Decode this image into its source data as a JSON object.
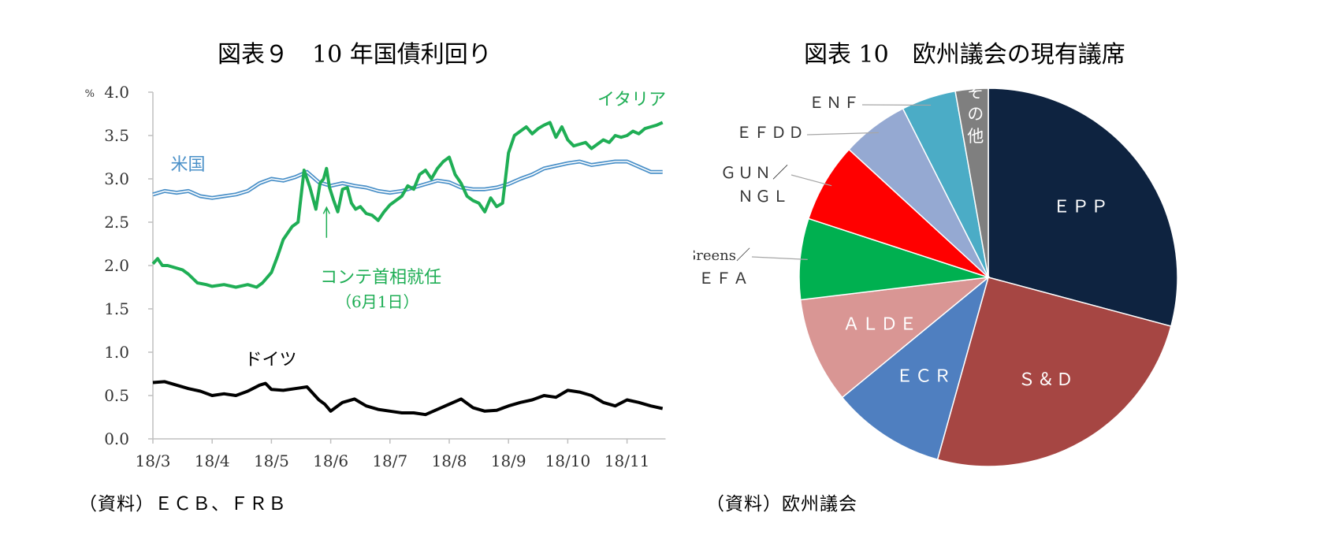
{
  "charts": [
    {
      "title": "図表９　10 年国債利回り",
      "source": "（資料）ＥＣＢ、ＦＲＢ"
    },
    {
      "title": "図表 10　欧州議会の現有議席",
      "source": "（資料）欧州議会"
    }
  ],
  "colors": {
    "italy": "#1fae55",
    "us": "#4a90c8",
    "germany": "#000000",
    "axis": "#bfbfbf"
  },
  "chart_data": [
    {
      "type": "line",
      "title": "図表９　10 年国債利回り",
      "yunit": "%",
      "ylim": [
        0.0,
        4.0
      ],
      "yticks": [
        "0.0",
        "0.5",
        "1.0",
        "1.5",
        "2.0",
        "2.5",
        "3.0",
        "3.5",
        "4.0"
      ],
      "xticks": [
        "18/3",
        "18/4",
        "18/5",
        "18/6",
        "18/7",
        "18/8",
        "18/9",
        "18/10",
        "18/11"
      ],
      "xlim": [
        0,
        8.65
      ],
      "annotation": {
        "line1": "コンテ首相就任",
        "line2": "（6月1日）",
        "x": 2.93,
        "y": 2.67
      },
      "series": [
        {
          "name": "イタリア",
          "x": [
            0,
            0.08,
            0.16,
            0.25,
            0.35,
            0.5,
            0.6,
            0.75,
            0.9,
            1.0,
            1.2,
            1.4,
            1.6,
            1.75,
            1.85,
            2.0,
            2.1,
            2.2,
            2.35,
            2.45,
            2.55,
            2.65,
            2.75,
            2.82,
            2.88,
            2.93,
            2.98,
            3.05,
            3.12,
            3.2,
            3.28,
            3.35,
            3.42,
            3.5,
            3.6,
            3.7,
            3.8,
            3.9,
            4.0,
            4.1,
            4.2,
            4.3,
            4.4,
            4.5,
            4.6,
            4.7,
            4.8,
            4.9,
            5.0,
            5.1,
            5.2,
            5.3,
            5.4,
            5.5,
            5.6,
            5.7,
            5.8,
            5.9,
            6.0,
            6.1,
            6.2,
            6.3,
            6.4,
            6.5,
            6.6,
            6.7,
            6.8,
            6.9,
            7.0,
            7.1,
            7.2,
            7.3,
            7.4,
            7.5,
            7.6,
            7.7,
            7.8,
            7.9,
            8.0,
            8.1,
            8.2,
            8.3,
            8.4,
            8.5,
            8.6
          ],
          "values": [
            2.02,
            2.08,
            2.0,
            2.0,
            1.98,
            1.95,
            1.9,
            1.8,
            1.78,
            1.76,
            1.78,
            1.75,
            1.78,
            1.75,
            1.8,
            1.92,
            2.1,
            2.3,
            2.45,
            2.5,
            3.1,
            2.9,
            2.65,
            2.95,
            3.0,
            3.12,
            2.9,
            2.75,
            2.62,
            2.88,
            2.9,
            2.72,
            2.65,
            2.68,
            2.6,
            2.58,
            2.52,
            2.62,
            2.7,
            2.75,
            2.8,
            2.92,
            2.88,
            3.05,
            3.1,
            3.0,
            3.12,
            3.2,
            3.25,
            3.05,
            2.95,
            2.8,
            2.75,
            2.72,
            2.62,
            2.78,
            2.68,
            2.72,
            3.3,
            3.5,
            3.55,
            3.6,
            3.52,
            3.58,
            3.62,
            3.65,
            3.48,
            3.6,
            3.45,
            3.38,
            3.4,
            3.42,
            3.35,
            3.4,
            3.45,
            3.42,
            3.5,
            3.48,
            3.5,
            3.55,
            3.52,
            3.58,
            3.6,
            3.62,
            3.65
          ]
        },
        {
          "name": "米国",
          "x": [
            0,
            0.2,
            0.4,
            0.6,
            0.8,
            1.0,
            1.2,
            1.4,
            1.6,
            1.8,
            2.0,
            2.2,
            2.4,
            2.6,
            2.8,
            3.0,
            3.2,
            3.4,
            3.6,
            3.8,
            4.0,
            4.2,
            4.4,
            4.6,
            4.8,
            5.0,
            5.2,
            5.4,
            5.6,
            5.8,
            6.0,
            6.2,
            6.4,
            6.6,
            6.8,
            7.0,
            7.2,
            7.4,
            7.6,
            7.8,
            8.0,
            8.2,
            8.4,
            8.6
          ],
          "values": [
            2.82,
            2.86,
            2.84,
            2.86,
            2.8,
            2.78,
            2.8,
            2.82,
            2.86,
            2.95,
            3.0,
            2.98,
            3.02,
            3.08,
            2.96,
            2.92,
            2.95,
            2.92,
            2.9,
            2.86,
            2.84,
            2.86,
            2.9,
            2.94,
            2.98,
            2.96,
            2.9,
            2.88,
            2.88,
            2.9,
            2.94,
            3.0,
            3.05,
            3.12,
            3.15,
            3.18,
            3.2,
            3.16,
            3.18,
            3.2,
            3.2,
            3.14,
            3.08,
            3.08
          ]
        },
        {
          "name": "ドイツ",
          "x": [
            0,
            0.2,
            0.4,
            0.6,
            0.8,
            1.0,
            1.2,
            1.4,
            1.6,
            1.8,
            1.9,
            2.0,
            2.2,
            2.4,
            2.6,
            2.8,
            2.9,
            3.0,
            3.2,
            3.4,
            3.6,
            3.8,
            4.0,
            4.2,
            4.4,
            4.6,
            4.8,
            5.0,
            5.2,
            5.4,
            5.6,
            5.8,
            6.0,
            6.2,
            6.4,
            6.6,
            6.8,
            7.0,
            7.2,
            7.4,
            7.6,
            7.8,
            8.0,
            8.2,
            8.4,
            8.6
          ],
          "values": [
            0.65,
            0.66,
            0.62,
            0.58,
            0.55,
            0.5,
            0.52,
            0.5,
            0.55,
            0.62,
            0.64,
            0.57,
            0.56,
            0.58,
            0.6,
            0.45,
            0.4,
            0.32,
            0.42,
            0.46,
            0.38,
            0.34,
            0.32,
            0.3,
            0.3,
            0.28,
            0.34,
            0.4,
            0.46,
            0.36,
            0.32,
            0.33,
            0.38,
            0.42,
            0.45,
            0.5,
            0.48,
            0.56,
            0.54,
            0.5,
            0.42,
            0.38,
            0.45,
            0.42,
            0.38,
            0.35
          ]
        }
      ]
    },
    {
      "type": "pie",
      "title": "図表 10　欧州議会の現有議席",
      "slices": [
        {
          "label": "ＥＰＰ",
          "value": 219,
          "color": "#0e2340"
        },
        {
          "label": "Ｓ＆Ｄ",
          "value": 189,
          "color": "#a64643"
        },
        {
          "label": "ＥＣＲ",
          "value": 73,
          "color": "#4f7fc0"
        },
        {
          "label": "ＡＬＤＥ",
          "value": 68,
          "color": "#d99694"
        },
        {
          "label": "Greens／ＥＦＡ",
          "label_line1": "Greens／",
          "label_line2": "ＥＦＡ",
          "value": 52,
          "color": "#00b050"
        },
        {
          "label": "ＧＵＮ／ＮＧＬ",
          "label_line1": "ＧＵＮ／",
          "label_line2": "ＮＧＬ",
          "value": 51,
          "color": "#ff0000"
        },
        {
          "label": "ＥＦＤＤ",
          "value": 43,
          "color": "#95a9d2"
        },
        {
          "label": "ＥＮＦ",
          "value": 35,
          "color": "#4bacc6"
        },
        {
          "label": "その他",
          "value": 21,
          "color": "#7f7f7f"
        }
      ]
    }
  ]
}
